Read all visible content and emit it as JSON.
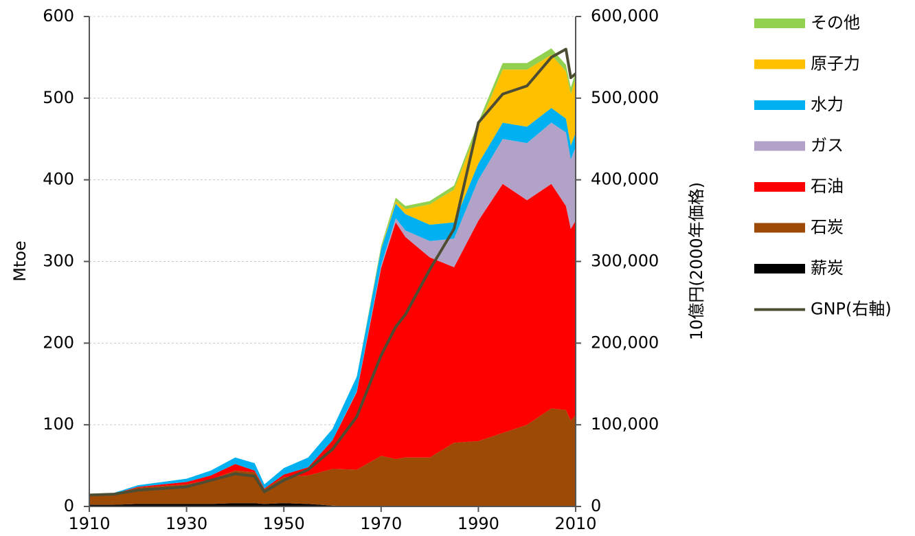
{
  "chart_data": {
    "type": "stacked_area",
    "ylabel": "Mtoe",
    "y2label": "10億円(2000年価格)",
    "x": [
      1910,
      1915,
      1920,
      1925,
      1930,
      1935,
      1940,
      1944,
      1946,
      1950,
      1955,
      1960,
      1965,
      1970,
      1973,
      1975,
      1980,
      1985,
      1990,
      1995,
      2000,
      2005,
      2008,
      2009,
      2010
    ],
    "xlim": [
      1910,
      2010
    ],
    "xticks": [
      1910,
      1930,
      1950,
      1970,
      1990,
      2010
    ],
    "ylim": [
      0,
      600
    ],
    "yticks": [
      0,
      100,
      200,
      300,
      400,
      500,
      600
    ],
    "y2lim": [
      0,
      600000
    ],
    "y2ticks": [
      0,
      {
        "value": 100000,
        "label": "100,000"
      },
      {
        "value": 200000,
        "label": "200,000"
      },
      {
        "value": 300000,
        "label": "300,000"
      },
      {
        "value": 400000,
        "label": "400,000"
      },
      {
        "value": 500000,
        "label": "500,000"
      },
      {
        "value": 600000,
        "label": "600,000"
      }
    ],
    "grid": true,
    "legend": "right",
    "series": [
      {
        "name": "薪炭",
        "color": "#000000",
        "values": [
          2,
          2,
          3,
          3,
          3,
          3,
          4,
          4,
          3,
          4,
          3,
          1,
          0,
          0,
          0,
          0,
          0,
          0,
          0,
          0,
          0,
          0,
          0,
          0,
          0
        ]
      },
      {
        "name": "石炭",
        "color": "#9c4a06",
        "values": [
          12,
          13,
          20,
          22,
          24,
          30,
          40,
          38,
          18,
          32,
          35,
          45,
          45,
          62,
          58,
          60,
          60,
          78,
          80,
          90,
          100,
          120,
          118,
          105,
          112
        ]
      },
      {
        "name": "石油",
        "color": "#ff0000",
        "values": [
          0.5,
          0.5,
          1,
          2,
          3,
          5,
          8,
          2,
          1,
          3,
          10,
          35,
          95,
          230,
          290,
          270,
          245,
          215,
          270,
          305,
          275,
          275,
          250,
          235,
          238
        ]
      },
      {
        "name": "ガス",
        "color": "#b3a2c7",
        "values": [
          0,
          0,
          0,
          0,
          0,
          0,
          0,
          0,
          0,
          0,
          0,
          0,
          1,
          3,
          5,
          8,
          20,
          35,
          50,
          55,
          70,
          75,
          90,
          85,
          90
        ]
      },
      {
        "name": "水力",
        "color": "#00b0f0",
        "values": [
          1,
          1,
          2,
          3,
          4,
          6,
          8,
          9,
          5,
          8,
          12,
          14,
          18,
          20,
          18,
          20,
          20,
          20,
          20,
          20,
          20,
          18,
          17,
          17,
          18
        ]
      },
      {
        "name": "原子力",
        "color": "#ffc000",
        "values": [
          0,
          0,
          0,
          0,
          0,
          0,
          0,
          0,
          0,
          0,
          0,
          0,
          0,
          1,
          3,
          6,
          25,
          40,
          45,
          65,
          70,
          65,
          58,
          63,
          66
        ]
      },
      {
        "name": "その他",
        "color": "#92d050",
        "values": [
          0,
          0,
          0,
          0,
          0,
          0,
          0,
          0,
          0,
          0,
          0,
          0,
          0,
          3,
          4,
          4,
          4,
          5,
          6,
          8,
          8,
          8,
          8,
          8,
          8
        ]
      },
      {
        "name": "GNP(右軸)",
        "color": "#4d4d33",
        "type": "line",
        "axis": "y2",
        "values": [
          14000,
          15000,
          20000,
          22000,
          24000,
          32000,
          40000,
          37000,
          18000,
          32000,
          45000,
          70000,
          110000,
          185000,
          220000,
          235000,
          290000,
          340000,
          470000,
          505000,
          515000,
          550000,
          560000,
          525000,
          530000
        ]
      }
    ]
  }
}
